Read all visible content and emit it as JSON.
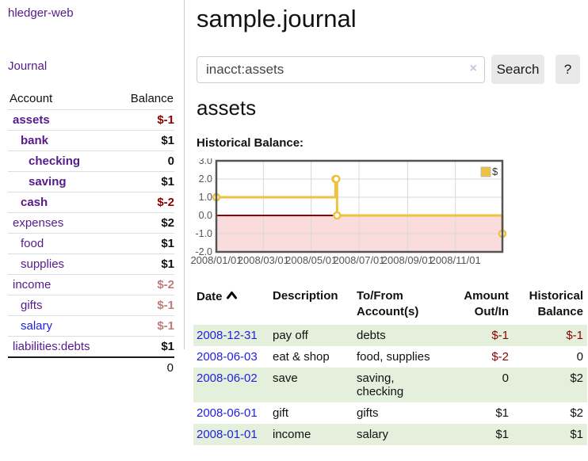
{
  "colors": {
    "link_purple": "#551a8b",
    "link_blue": "#2222dd",
    "negative_strong": "#8b0000",
    "negative_muted": "#bf7b7b",
    "row_stripe_green": "#e4f0dc",
    "button_bg": "#e9e9e9",
    "series_gold": "#edc240"
  },
  "icons": {
    "sort_asc": "chevron-up-icon",
    "clear_search": "×"
  },
  "sidebar": {
    "brand": "hledger-web",
    "journal_link": "Journal",
    "accounts": {
      "headers": {
        "account": "Account",
        "balance": "Balance"
      },
      "rows": [
        {
          "account": "assets",
          "balance": "$-1",
          "indent": 0,
          "bold": true,
          "balance_color": "negative_strong"
        },
        {
          "account": "bank",
          "balance": "$1",
          "indent": 1,
          "bold": true
        },
        {
          "account": "checking",
          "balance": "0",
          "indent": 2,
          "bold": true
        },
        {
          "account": "saving",
          "balance": "$1",
          "indent": 2,
          "bold": true
        },
        {
          "account": "cash",
          "balance": "$-2",
          "indent": 1,
          "bold": true,
          "balance_color": "negative_strong"
        },
        {
          "account": "expenses",
          "balance": "$2",
          "indent": 0
        },
        {
          "account": "food",
          "balance": "$1",
          "indent": 1
        },
        {
          "account": "supplies",
          "balance": "$1",
          "indent": 1
        },
        {
          "account": "income",
          "balance": "$-2",
          "indent": 0,
          "balance_color": "negative_muted"
        },
        {
          "account": "gifts",
          "balance": "$-1",
          "indent": 1,
          "balance_color": "negative_muted"
        },
        {
          "account": "salary",
          "balance": "$-1",
          "indent": 1,
          "balance_color": "negative_muted",
          "link_color": "blue"
        },
        {
          "account": "liabilities:debts",
          "balance": "$1",
          "indent": 0
        }
      ],
      "total": "0"
    }
  },
  "main": {
    "title": "sample.journal",
    "search": {
      "value": "inacct:assets",
      "clear_icon": "×",
      "search_button": "Search",
      "help_button": "?"
    },
    "account_heading": "assets",
    "chart_label": "Historical Balance:",
    "register": {
      "headers": {
        "date": "Date",
        "description": "Description",
        "tofrom": "To/From\nAccount(s)",
        "amount": "Amount\nOut/In",
        "balance": "Historical\nBalance"
      },
      "rows": [
        {
          "date": "2008-12-31",
          "description": "pay off",
          "tofrom": "debts",
          "amount": "$-1",
          "balance": "$-1"
        },
        {
          "date": "2008-06-03",
          "description": "eat & shop",
          "tofrom": "food, supplies",
          "amount": "$-2",
          "balance": "0"
        },
        {
          "date": "2008-06-02",
          "description": "save",
          "tofrom": "saving,\nchecking",
          "amount": "0",
          "balance": "$2"
        },
        {
          "date": "2008-06-01",
          "description": "gift",
          "tofrom": "gifts",
          "amount": "$1",
          "balance": "$2"
        },
        {
          "date": "2008-01-01",
          "description": "income",
          "tofrom": "salary",
          "amount": "$1",
          "balance": "$1"
        }
      ]
    }
  },
  "chart_data": {
    "type": "line",
    "title": "Historical Balance",
    "step": true,
    "series": [
      {
        "name": "$",
        "color": "#edc240",
        "points": [
          [
            "2008-01-01",
            1
          ],
          [
            "2008-06-01",
            2
          ],
          [
            "2008-06-02",
            2
          ],
          [
            "2008-06-03",
            0
          ],
          [
            "2008-12-31",
            -1
          ]
        ]
      }
    ],
    "x_range": [
      "2008-01-01",
      "2008-12-31"
    ],
    "x_ticks": [
      "2008/01/01",
      "2008/03/01",
      "2008/05/01",
      "2008/07/01",
      "2008/09/01",
      "2008/11/01"
    ],
    "y_ticks": [
      3.0,
      2.0,
      1.0,
      0.0,
      -1.0,
      -2.0
    ],
    "ylim": [
      -2,
      3
    ],
    "grid": true,
    "legend_position": "top-right",
    "negative_region_color": "#fbdcdc",
    "zero_line_color": "#990000"
  }
}
